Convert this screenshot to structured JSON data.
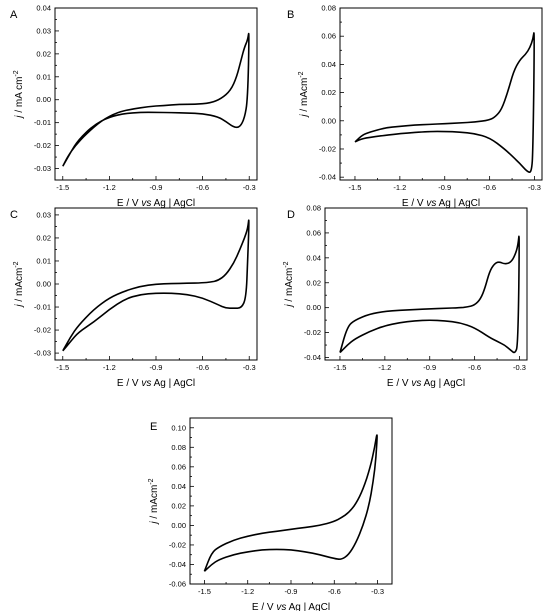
{
  "chart_data": [
    {
      "type": "line",
      "panel": "A",
      "xlabel": {
        "pre": "E / V ",
        "italic": "vs",
        "post": " Ag | AgCl"
      },
      "ylabel": {
        "italic": "j",
        "post": " / mA cm",
        "sup": "-2"
      },
      "xlim": [
        -1.55,
        -0.25
      ],
      "ylim": [
        -0.035,
        0.04
      ],
      "xticks": [
        "-1.5",
        "-1.2",
        "-0.9",
        "-0.6",
        "-0.3"
      ],
      "xtick_values": [
        -1.5,
        -1.2,
        -0.9,
        -0.6,
        -0.3
      ],
      "yticks": [
        "-0.03",
        "-0.02",
        "-0.01",
        "0.00",
        "0.01",
        "0.02",
        "0.03",
        "0.04"
      ],
      "ytick_values": [
        -0.03,
        -0.02,
        -0.01,
        0.0,
        0.01,
        0.02,
        0.03,
        0.04
      ],
      "series": [
        {
          "x": [
            -1.5,
            -1.45,
            -1.4,
            -1.3,
            -1.2,
            -1.1,
            -1.0,
            -0.9,
            -0.8,
            -0.7,
            -0.6,
            -0.5,
            -0.45,
            -0.4,
            -0.36,
            -0.33,
            -0.31,
            -0.3,
            -0.31,
            -0.33,
            -0.35,
            -0.38,
            -0.42,
            -0.48,
            -0.55,
            -0.65,
            -0.75,
            -0.85,
            -0.95,
            -1.05,
            -1.15,
            -1.25,
            -1.35,
            -1.42,
            -1.47,
            -1.5
          ],
          "y": [
            -0.029,
            -0.023,
            -0.0175,
            -0.011,
            -0.0075,
            -0.006,
            -0.0055,
            -0.0055,
            -0.0056,
            -0.0058,
            -0.006,
            -0.0075,
            -0.0095,
            -0.012,
            -0.012,
            -0.008,
            0.0,
            0.031,
            0.026,
            0.023,
            0.018,
            0.01,
            0.004,
            0.0005,
            -0.0015,
            -0.002,
            -0.002,
            -0.0025,
            -0.003,
            -0.004,
            -0.0055,
            -0.009,
            -0.015,
            -0.02,
            -0.025,
            -0.029
          ]
        }
      ]
    },
    {
      "type": "line",
      "panel": "B",
      "xlabel": {
        "pre": "E / V ",
        "italic": "vs",
        "post": " Ag | AgCl"
      },
      "ylabel": {
        "italic": "j",
        "post": " / mAcm",
        "sup": "-2"
      },
      "xlim": [
        -1.6,
        -0.25
      ],
      "ylim": [
        -0.042,
        0.08
      ],
      "xticks": [
        "-1.5",
        "-1.2",
        "-0.9",
        "-0.6",
        "-0.3"
      ],
      "xtick_values": [
        -1.5,
        -1.2,
        -0.9,
        -0.6,
        -0.3
      ],
      "yticks": [
        "-0.04",
        "-0.02",
        "0.00",
        "0.02",
        "0.04",
        "0.06",
        "0.08"
      ],
      "ytick_values": [
        -0.04,
        -0.02,
        0.0,
        0.02,
        0.04,
        0.06,
        0.08
      ],
      "series": [
        {
          "x": [
            -1.5,
            -1.45,
            -1.35,
            -1.2,
            -1.0,
            -0.9,
            -0.8,
            -0.7,
            -0.6,
            -0.5,
            -0.45,
            -0.4,
            -0.35,
            -0.32,
            -0.31,
            -0.3,
            -0.31,
            -0.33,
            -0.36,
            -0.4,
            -0.44,
            -0.48,
            -0.52,
            -0.56,
            -0.6,
            -0.7,
            -0.8,
            -0.9,
            -1.0,
            -1.1,
            -1.2,
            -1.3,
            -1.4,
            -1.45,
            -1.5
          ],
          "y": [
            -0.015,
            -0.0125,
            -0.011,
            -0.009,
            -0.0075,
            -0.0075,
            -0.008,
            -0.009,
            -0.012,
            -0.02,
            -0.025,
            -0.03,
            -0.036,
            -0.037,
            -0.02,
            0.066,
            0.058,
            0.052,
            0.047,
            0.043,
            0.035,
            0.02,
            0.008,
            0.003,
            0.0005,
            -0.001,
            -0.0015,
            -0.002,
            -0.0025,
            -0.003,
            -0.004,
            -0.005,
            -0.008,
            -0.01,
            -0.015
          ]
        }
      ]
    },
    {
      "type": "line",
      "panel": "C",
      "xlabel": {
        "pre": "E / V ",
        "italic": "vs",
        "post": " Ag | AgCl"
      },
      "ylabel": {
        "italic": "j",
        "post": " / mAcm",
        "sup": "-2"
      },
      "xlim": [
        -1.55,
        -0.25
      ],
      "ylim": [
        -0.033,
        0.033
      ],
      "xticks": [
        "-1.5",
        "-1.2",
        "-0.9",
        "-0.6",
        "-0.3"
      ],
      "xtick_values": [
        -1.5,
        -1.2,
        -0.9,
        -0.6,
        -0.3
      ],
      "yticks": [
        "-0.03",
        "-0.02",
        "-0.01",
        "0.00",
        "0.01",
        "0.02",
        "0.03"
      ],
      "ytick_values": [
        -0.03,
        -0.02,
        -0.01,
        0.0,
        0.01,
        0.02,
        0.03
      ],
      "series": [
        {
          "x": [
            -1.5,
            -1.45,
            -1.4,
            -1.3,
            -1.2,
            -1.1,
            -1.0,
            -0.9,
            -0.8,
            -0.7,
            -0.6,
            -0.5,
            -0.45,
            -0.4,
            -0.35,
            -0.32,
            -0.31,
            -0.3,
            -0.31,
            -0.33,
            -0.36,
            -0.4,
            -0.45,
            -0.5,
            -0.55,
            -0.6,
            -0.7,
            -0.8,
            -0.9,
            -1.0,
            -1.1,
            -1.2,
            -1.3,
            -1.4,
            -1.45,
            -1.5
          ],
          "y": [
            -0.029,
            -0.025,
            -0.021,
            -0.0165,
            -0.011,
            -0.0065,
            -0.0045,
            -0.004,
            -0.004,
            -0.0045,
            -0.006,
            -0.009,
            -0.0105,
            -0.0105,
            -0.0105,
            -0.006,
            0.01,
            0.03,
            0.024,
            0.02,
            0.015,
            0.009,
            0.004,
            0.0015,
            0.0008,
            0.0005,
            0.0003,
            0.0002,
            0.0,
            -0.001,
            -0.003,
            -0.006,
            -0.011,
            -0.018,
            -0.023,
            -0.029
          ]
        }
      ]
    },
    {
      "type": "line",
      "panel": "D",
      "xlabel": {
        "pre": "E / V ",
        "italic": "vs",
        "post": " Ag | AgCl"
      },
      "ylabel": {
        "italic": "j",
        "post": " / mAcm",
        "sup": "-2"
      },
      "xlim": [
        -1.6,
        -0.25
      ],
      "ylim": [
        -0.042,
        0.08
      ],
      "xticks": [
        "-1.5",
        "-1.2",
        "-0.9",
        "-0.6",
        "-0.3"
      ],
      "xtick_values": [
        -1.5,
        -1.2,
        -0.9,
        -0.6,
        -0.3
      ],
      "yticks": [
        "-0.04",
        "-0.02",
        "0.00",
        "0.02",
        "0.04",
        "0.06",
        "0.08"
      ],
      "ytick_values": [
        -0.04,
        -0.02,
        0.0,
        0.02,
        0.04,
        0.06,
        0.08
      ],
      "series": [
        {
          "x": [
            -1.5,
            -1.45,
            -1.4,
            -1.3,
            -1.2,
            -1.1,
            -1.0,
            -0.9,
            -0.8,
            -0.7,
            -0.6,
            -0.5,
            -0.45,
            -0.4,
            -0.36,
            -0.33,
            -0.31,
            -0.3,
            -0.31,
            -0.33,
            -0.36,
            -0.4,
            -0.44,
            -0.47,
            -0.5,
            -0.53,
            -0.56,
            -0.6,
            -0.65,
            -0.7,
            -0.8,
            -0.9,
            -1.0,
            -1.1,
            -1.2,
            -1.3,
            -1.4,
            -1.45,
            -1.5
          ],
          "y": [
            -0.036,
            -0.03,
            -0.025,
            -0.019,
            -0.0145,
            -0.012,
            -0.0105,
            -0.01,
            -0.0105,
            -0.012,
            -0.016,
            -0.024,
            -0.027,
            -0.03,
            -0.034,
            -0.037,
            -0.03,
            0.063,
            0.05,
            0.042,
            0.036,
            0.035,
            0.037,
            0.035,
            0.029,
            0.016,
            0.007,
            0.002,
            0.0005,
            0.0,
            -0.0005,
            -0.001,
            -0.0015,
            -0.002,
            -0.003,
            -0.005,
            -0.01,
            -0.015,
            -0.036
          ]
        }
      ]
    },
    {
      "type": "line",
      "panel": "E",
      "xlabel": {
        "pre": "E / V ",
        "italic": "vs",
        "post": " Ag | AgCl"
      },
      "ylabel": {
        "italic": "j",
        "post": " / mAcm",
        "sup": "-2"
      },
      "xlim": [
        -1.6,
        -0.2
      ],
      "ylim": [
        -0.06,
        0.11
      ],
      "xticks": [
        "-1.5",
        "-1.2",
        "-0.9",
        "-0.6",
        "-0.3"
      ],
      "xtick_values": [
        -1.5,
        -1.2,
        -0.9,
        -0.6,
        -0.3
      ],
      "yticks": [
        "-0.06",
        "-0.04",
        "-0.02",
        "0.00",
        "0.02",
        "0.04",
        "0.06",
        "0.08",
        "0.10"
      ],
      "ytick_values": [
        -0.06,
        -0.04,
        -0.02,
        0.0,
        0.02,
        0.04,
        0.06,
        0.08,
        0.1
      ],
      "series": [
        {
          "x": [
            -1.5,
            -1.45,
            -1.4,
            -1.3,
            -1.2,
            -1.1,
            -1.0,
            -0.9,
            -0.8,
            -0.7,
            -0.6,
            -0.55,
            -0.5,
            -0.45,
            -0.4,
            -0.36,
            -0.33,
            -0.31,
            -0.3,
            -0.32,
            -0.35,
            -0.4,
            -0.45,
            -0.5,
            -0.55,
            -0.6,
            -0.7,
            -0.8,
            -0.9,
            -1.0,
            -1.1,
            -1.2,
            -1.3,
            -1.4,
            -1.45,
            -1.5
          ],
          "y": [
            -0.047,
            -0.04,
            -0.035,
            -0.03,
            -0.027,
            -0.025,
            -0.0245,
            -0.025,
            -0.027,
            -0.03,
            -0.034,
            -0.035,
            -0.03,
            -0.018,
            0.0,
            0.02,
            0.045,
            0.07,
            0.098,
            0.08,
            0.06,
            0.037,
            0.022,
            0.013,
            0.008,
            0.004,
            0.0,
            -0.002,
            -0.004,
            -0.006,
            -0.008,
            -0.011,
            -0.015,
            -0.022,
            -0.028,
            -0.047
          ]
        }
      ]
    }
  ]
}
